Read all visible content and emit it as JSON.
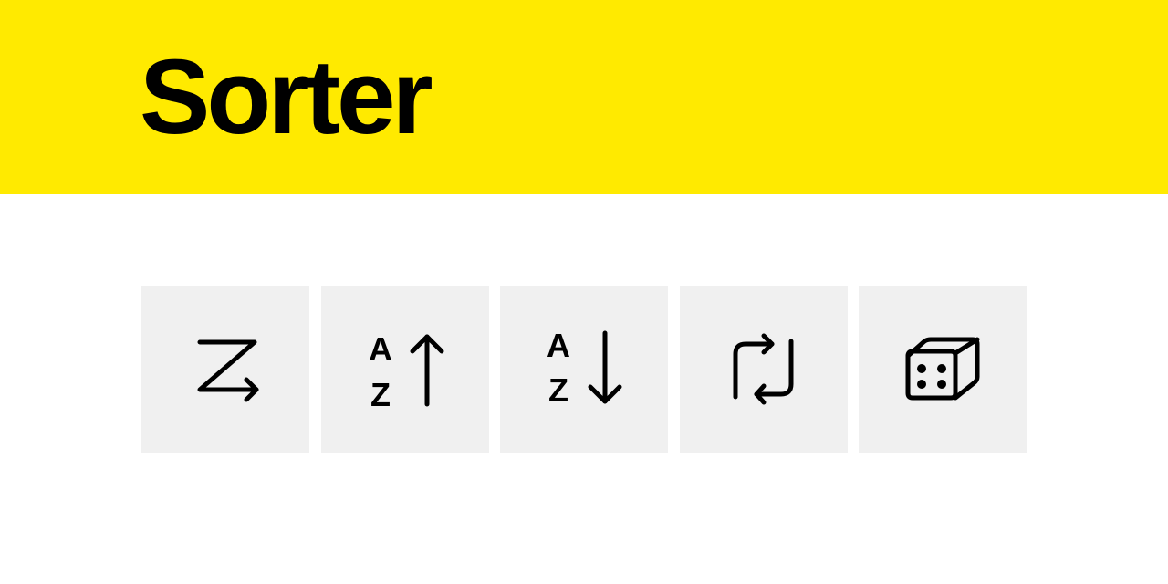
{
  "header": {
    "title": "Sorter",
    "background_color": "#ffea00"
  },
  "toolbar": {
    "button_background": "#f0f0f0",
    "buttons": [
      {
        "name": "original-order-button",
        "icon": "zigzag-arrow-icon"
      },
      {
        "name": "sort-ascending-button",
        "icon": "sort-az-up-icon",
        "letters": [
          "A",
          "Z"
        ]
      },
      {
        "name": "sort-descending-button",
        "icon": "sort-az-down-icon",
        "letters": [
          "A",
          "Z"
        ]
      },
      {
        "name": "reverse-button",
        "icon": "repeat-arrows-icon"
      },
      {
        "name": "shuffle-button",
        "icon": "dice-icon"
      }
    ]
  }
}
